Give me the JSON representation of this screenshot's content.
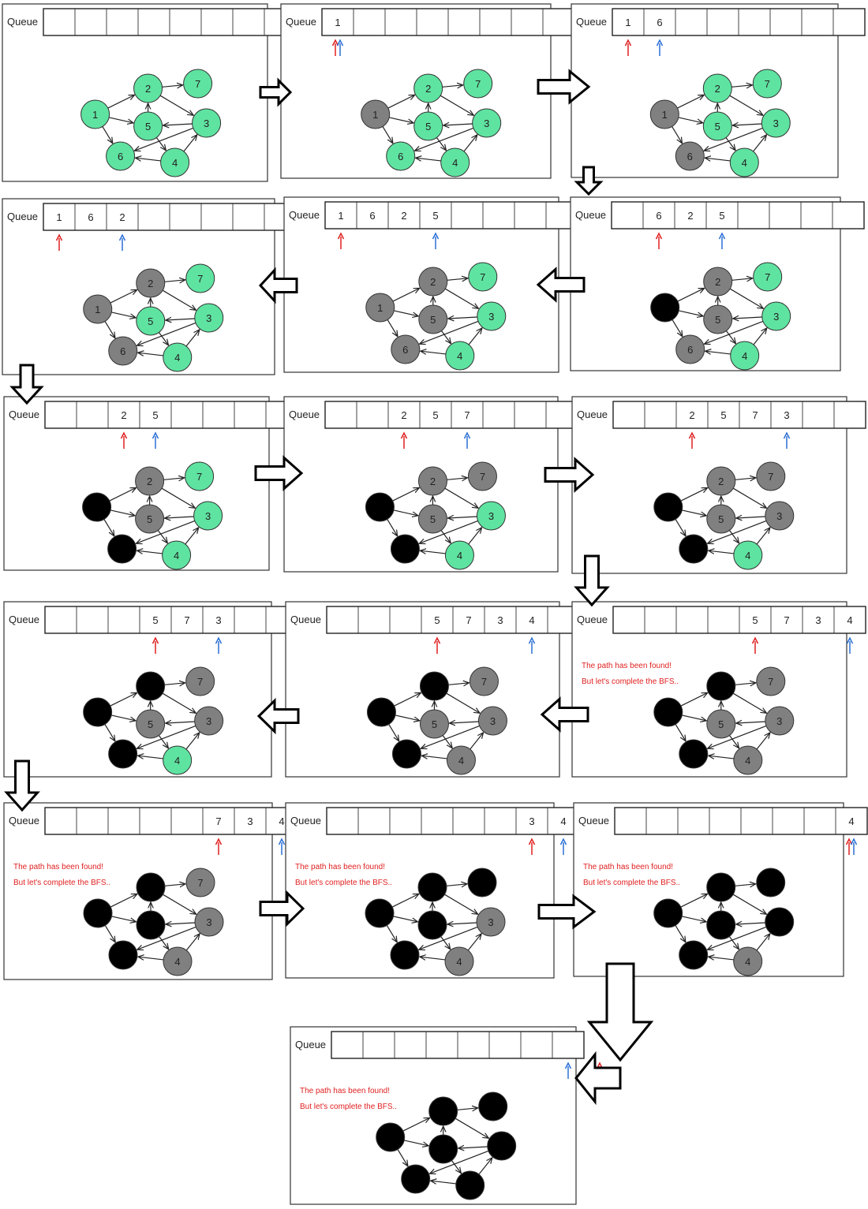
{
  "queue_label": "Queue",
  "message": [
    "The path has been found!",
    "But let's complete the BFS.."
  ],
  "colors": {
    "unvisited": "#5fe3a1",
    "discovered": "#808080",
    "finished": "#000000",
    "front_pointer": "#e02020",
    "rear_pointer": "#2a6fd6",
    "message": "#e02020",
    "edge": "#222222",
    "frame": "#333333"
  },
  "graph": {
    "edges": [
      [
        1,
        2
      ],
      [
        1,
        5
      ],
      [
        1,
        6
      ],
      [
        5,
        2
      ],
      [
        2,
        7
      ],
      [
        2,
        3
      ],
      [
        3,
        5
      ],
      [
        5,
        4
      ],
      [
        4,
        3
      ],
      [
        4,
        6
      ],
      [
        3,
        6
      ]
    ]
  },
  "steps": [
    {
      "queue": [
        "",
        "",
        "",
        "",
        "",
        "",
        "",
        ""
      ],
      "front": null,
      "rear": null,
      "labels": {
        "1": "1",
        "2": "2",
        "3": "3",
        "4": "4",
        "5": "5",
        "6": "6",
        "7": "7"
      },
      "states": {
        "1": "u",
        "2": "u",
        "3": "u",
        "4": "u",
        "5": "u",
        "6": "u",
        "7": "u"
      },
      "message": false
    },
    {
      "queue": [
        "1",
        "",
        "",
        "",
        "",
        "",
        "",
        ""
      ],
      "front": 0,
      "rear": 0,
      "labels": {
        "1": "1",
        "2": "2",
        "3": "3",
        "4": "4",
        "5": "5",
        "6": "6",
        "7": "7"
      },
      "states": {
        "1": "d",
        "2": "u",
        "3": "u",
        "4": "u",
        "5": "u",
        "6": "u",
        "7": "u"
      },
      "message": false
    },
    {
      "queue": [
        "1",
        "6",
        "",
        "",
        "",
        "",
        "",
        ""
      ],
      "front": 0,
      "rear": 1,
      "labels": {
        "1": "1",
        "2": "2",
        "3": "3",
        "4": "4",
        "5": "5",
        "6": "6",
        "7": "7"
      },
      "states": {
        "1": "d",
        "2": "u",
        "3": "u",
        "4": "u",
        "5": "u",
        "6": "d",
        "7": "u"
      },
      "message": false
    },
    {
      "queue": [
        "1",
        "6",
        "2",
        "",
        "",
        "",
        "",
        ""
      ],
      "front": 0,
      "rear": 2,
      "labels": {
        "1": "1",
        "2": "2",
        "3": "3",
        "4": "4",
        "5": "5",
        "6": "6",
        "7": "7"
      },
      "states": {
        "1": "d",
        "2": "d",
        "3": "u",
        "4": "u",
        "5": "u",
        "6": "d",
        "7": "u"
      },
      "message": false
    },
    {
      "queue": [
        "1",
        "6",
        "2",
        "5",
        "",
        "",
        "",
        ""
      ],
      "front": 0,
      "rear": 3,
      "labels": {
        "1": "1",
        "2": "2",
        "3": "3",
        "4": "4",
        "5": "5",
        "6": "6",
        "7": "7"
      },
      "states": {
        "1": "d",
        "2": "d",
        "3": "u",
        "4": "u",
        "5": "d",
        "6": "d",
        "7": "u"
      },
      "message": false
    },
    {
      "queue": [
        "",
        "6",
        "2",
        "5",
        "",
        "",
        "",
        ""
      ],
      "front": 1,
      "rear": 3,
      "labels": {
        "1": "",
        "2": "2",
        "3": "3",
        "4": "4",
        "5": "5",
        "6": "6",
        "7": "7"
      },
      "states": {
        "1": "f",
        "2": "d",
        "3": "u",
        "4": "u",
        "5": "d",
        "6": "d",
        "7": "u"
      },
      "message": false
    },
    {
      "queue": [
        "",
        "",
        "2",
        "5",
        "",
        "",
        "",
        ""
      ],
      "front": 2,
      "rear": 3,
      "labels": {
        "1": "",
        "2": "2",
        "3": "3",
        "4": "4",
        "5": "5",
        "6": "",
        "7": "7"
      },
      "states": {
        "1": "f",
        "2": "d",
        "3": "u",
        "4": "u",
        "5": "d",
        "6": "f",
        "7": "u"
      },
      "message": false
    },
    {
      "queue": [
        "",
        "",
        "2",
        "5",
        "7",
        "",
        "",
        ""
      ],
      "front": 2,
      "rear": 4,
      "labels": {
        "1": "",
        "2": "2",
        "3": "3",
        "4": "4",
        "5": "5",
        "6": "",
        "7": "7"
      },
      "states": {
        "1": "f",
        "2": "d",
        "3": "u",
        "4": "u",
        "5": "d",
        "6": "f",
        "7": "d"
      },
      "message": false
    },
    {
      "queue": [
        "",
        "",
        "2",
        "5",
        "7",
        "3",
        "",
        ""
      ],
      "front": 2,
      "rear": 5,
      "labels": {
        "1": "",
        "2": "2",
        "3": "3",
        "4": "4",
        "5": "5",
        "6": "",
        "7": "7"
      },
      "states": {
        "1": "f",
        "2": "d",
        "3": "d",
        "4": "u",
        "5": "d",
        "6": "f",
        "7": "d"
      },
      "message": false
    },
    {
      "queue": [
        "",
        "",
        "",
        "5",
        "7",
        "3",
        "",
        ""
      ],
      "front": 3,
      "rear": 5,
      "labels": {
        "1": "",
        "2": "",
        "3": "3",
        "4": "4",
        "5": "5",
        "6": "",
        "7": "7"
      },
      "states": {
        "1": "f",
        "2": "f",
        "3": "d",
        "4": "u",
        "5": "d",
        "6": "f",
        "7": "d"
      },
      "message": false
    },
    {
      "queue": [
        "",
        "",
        "",
        "5",
        "7",
        "3",
        "4",
        ""
      ],
      "front": 3,
      "rear": 6,
      "labels": {
        "1": "",
        "2": "",
        "3": "3",
        "4": "4",
        "5": "5",
        "6": "",
        "7": "7"
      },
      "states": {
        "1": "f",
        "2": "f",
        "3": "d",
        "4": "d",
        "5": "d",
        "6": "f",
        "7": "d"
      },
      "message": false
    },
    {
      "queue": [
        "",
        "",
        "",
        "",
        "5",
        "7",
        "3",
        "4"
      ],
      "front": 4,
      "rear": 7,
      "labels": {
        "1": "",
        "2": "",
        "3": "3",
        "4": "4",
        "5": "5",
        "6": "",
        "7": "7"
      },
      "states": {
        "1": "f",
        "2": "f",
        "3": "d",
        "4": "d",
        "5": "d",
        "6": "f",
        "7": "d"
      },
      "message": true
    },
    {
      "queue": [
        "",
        "",
        "",
        "",
        "",
        "7",
        "3",
        "4"
      ],
      "front": 5,
      "rear": 7,
      "labels": {
        "1": "",
        "2": "",
        "3": "3",
        "4": "4",
        "5": "",
        "6": "",
        "7": "7"
      },
      "states": {
        "1": "f",
        "2": "f",
        "3": "d",
        "4": "d",
        "5": "f",
        "6": "f",
        "7": "d"
      },
      "message": true
    },
    {
      "queue": [
        "",
        "",
        "",
        "",
        "",
        "",
        "3",
        "4"
      ],
      "front": 6,
      "rear": 7,
      "labels": {
        "1": "",
        "2": "",
        "3": "3",
        "4": "4",
        "5": "",
        "6": "",
        "7": ""
      },
      "states": {
        "1": "f",
        "2": "f",
        "3": "d",
        "4": "d",
        "5": "f",
        "6": "f",
        "7": "f"
      },
      "message": true
    },
    {
      "queue": [
        "",
        "",
        "",
        "",
        "",
        "",
        "",
        "4"
      ],
      "front": 7,
      "rear": 7,
      "labels": {
        "1": "",
        "2": "",
        "3": "",
        "4": "4",
        "5": "",
        "6": "",
        "7": ""
      },
      "states": {
        "1": "f",
        "2": "f",
        "3": "f",
        "4": "d",
        "5": "f",
        "6": "f",
        "7": "f"
      },
      "message": true
    },
    {
      "queue": [
        "",
        "",
        "",
        "",
        "",
        "",
        "",
        ""
      ],
      "front": 8,
      "rear": 7,
      "labels": {
        "1": "",
        "2": "",
        "3": "",
        "4": "",
        "5": "",
        "6": "",
        "7": ""
      },
      "states": {
        "1": "f",
        "2": "f",
        "3": "f",
        "4": "f",
        "5": "f",
        "6": "f",
        "7": "f"
      },
      "message": true
    }
  ]
}
